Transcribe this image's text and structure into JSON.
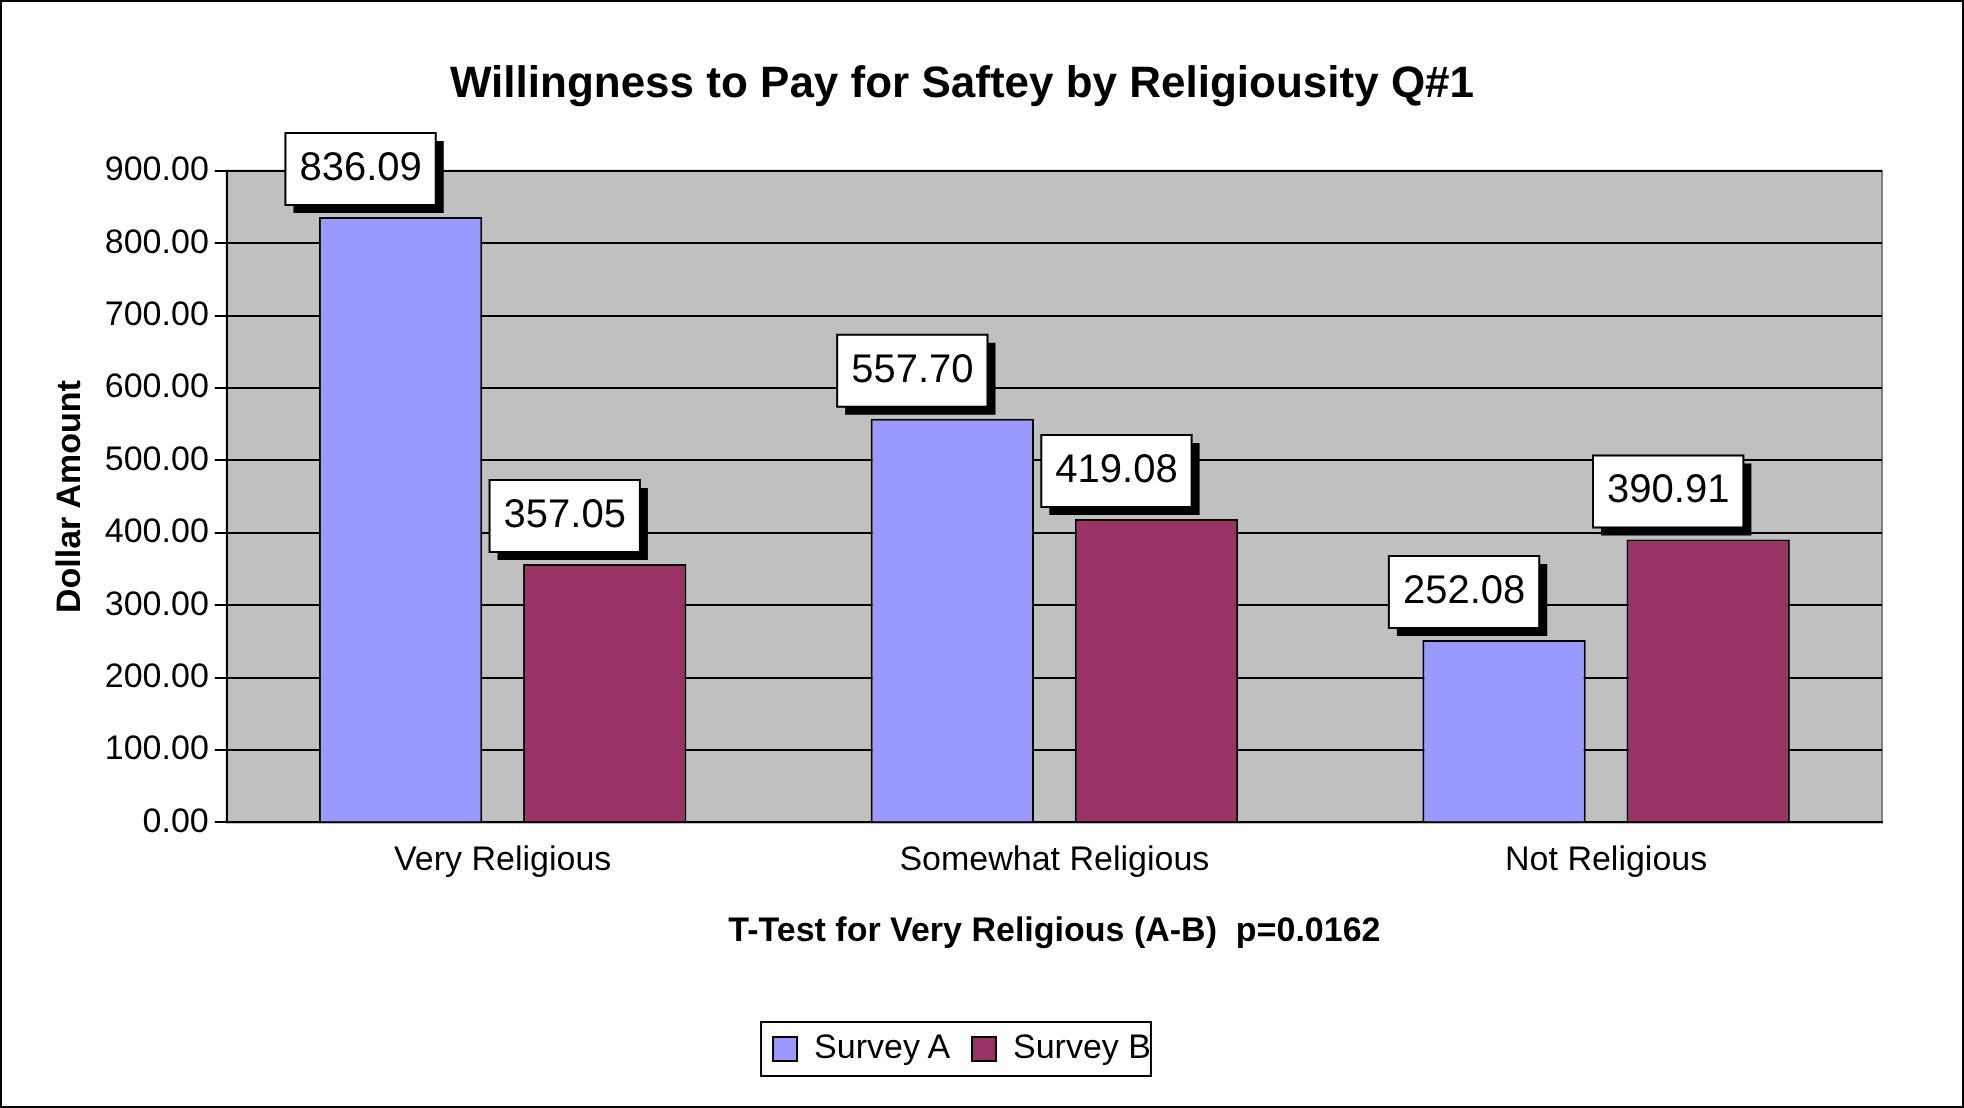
{
  "chart_data": {
    "type": "bar",
    "title": "Willingness to Pay for Saftey by Religiousity Q#1",
    "xlabel": "T-Test for Very Religious (A-B)  p=0.0162",
    "ylabel": "Dollar Amount",
    "categories": [
      "Very Religious",
      "Somewhat Religious",
      "Not Religious"
    ],
    "series": [
      {
        "name": "Survey A",
        "color": "#9999ff",
        "values": [
          836.09,
          557.7,
          252.08
        ],
        "value_labels": [
          "836.09",
          "557.70",
          "252.08"
        ]
      },
      {
        "name": "Survey B",
        "color": "#993366",
        "values": [
          357.05,
          419.08,
          390.91
        ],
        "value_labels": [
          "357.05",
          "419.08",
          "390.91"
        ]
      }
    ],
    "ylim": [
      0,
      900
    ],
    "yticks": [
      {
        "value": 0,
        "label": "0.00"
      },
      {
        "value": 100,
        "label": "100.00"
      },
      {
        "value": 200,
        "label": "200.00"
      },
      {
        "value": 300,
        "label": "300.00"
      },
      {
        "value": 400,
        "label": "400.00"
      },
      {
        "value": 500,
        "label": "500.00"
      },
      {
        "value": 600,
        "label": "600.00"
      },
      {
        "value": 700,
        "label": "700.00"
      },
      {
        "value": 800,
        "label": "800.00"
      },
      {
        "value": 900,
        "label": "900.00"
      }
    ],
    "grid": "y",
    "legend": "bottom"
  }
}
